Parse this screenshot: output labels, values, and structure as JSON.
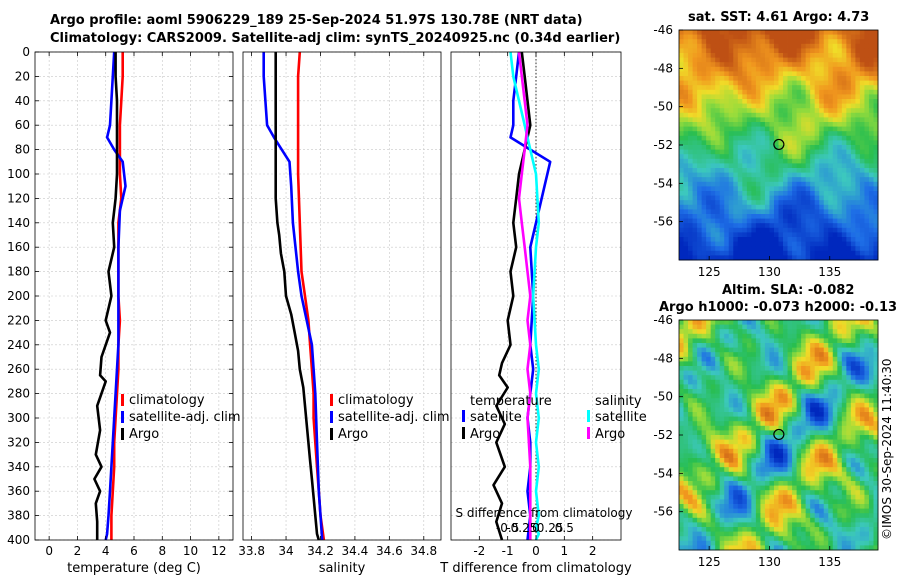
{
  "titles": {
    "line1": "Argo profile: aoml 5906229_189 25-Sep-2024 51.97S 130.78E (NRT data)",
    "line2": "Climatology: CARS2009. Satellite-adj clim: synTS_20240925.nc (0.34d earlier)",
    "sst": "sat. SST: 4.61 Argo: 4.73",
    "sla1": "Altim. SLA: -0.082",
    "sla2": "Argo h1000: -0.073 h2000: -0.13"
  },
  "credit": "©IMOS 30-Sep-2024 11:40:30",
  "colors": {
    "climatology": "#ff0000",
    "satellite": "#0000ff",
    "argo": "#000000",
    "sat_salinity": "#00ffff",
    "argo_salinity": "#ff00ff"
  },
  "chart_data": [
    {
      "type": "line",
      "title": "",
      "xlabel": "temperature (deg C)",
      "ylabel": "",
      "xlim": [
        -1,
        13
      ],
      "ylim": [
        400,
        0
      ],
      "xticks": [
        0,
        2,
        4,
        6,
        8,
        10,
        12
      ],
      "xtick_labels": [
        "0",
        "2",
        "4",
        "6",
        "8",
        "10",
        "12"
      ],
      "yticks": [
        0,
        20,
        40,
        60,
        80,
        100,
        120,
        140,
        160,
        180,
        200,
        220,
        240,
        260,
        280,
        300,
        320,
        340,
        360,
        380,
        400
      ],
      "ytick_labels": [
        "0",
        "20",
        "40",
        "60",
        "80",
        "100",
        "120",
        "140",
        "160",
        "180",
        "200",
        "220",
        "240",
        "260",
        "280",
        "300",
        "320",
        "340",
        "360",
        "380",
        "400"
      ],
      "grid": true,
      "legend": [
        "climatology",
        "satellite-adj. clim",
        "Argo"
      ],
      "series": [
        {
          "name": "climatology",
          "color": "red",
          "x": [
            5.2,
            5.2,
            5.1,
            5.0,
            5.0,
            5.0,
            5.1,
            4.9,
            4.9,
            4.9,
            5.0,
            4.9,
            4.9,
            4.8,
            4.7,
            4.6,
            4.6,
            4.5,
            4.4,
            4.4
          ],
          "y": [
            0,
            20,
            40,
            60,
            80,
            100,
            120,
            140,
            180,
            200,
            220,
            240,
            260,
            280,
            300,
            320,
            340,
            360,
            380,
            400
          ]
        },
        {
          "name": "satellite-adj. clim",
          "color": "blue",
          "x": [
            4.6,
            4.5,
            4.4,
            4.3,
            4.1,
            4.6,
            5.2,
            5.4,
            5.0,
            4.9,
            4.9,
            4.9,
            4.8,
            4.7,
            4.6,
            4.5,
            4.4,
            4.3,
            4.2,
            4.1,
            4.0
          ],
          "y": [
            0,
            20,
            40,
            60,
            70,
            80,
            90,
            110,
            130,
            160,
            200,
            240,
            260,
            280,
            300,
            320,
            340,
            360,
            380,
            395,
            400
          ]
        },
        {
          "name": "Argo",
          "color": "black",
          "x": [
            4.7,
            4.7,
            4.8,
            4.8,
            4.8,
            4.8,
            4.7,
            4.5,
            4.6,
            4.2,
            4.4,
            4.0,
            4.3,
            3.7,
            3.6,
            4.0,
            3.4,
            3.6,
            3.3,
            3.7,
            3.2,
            3.6,
            3.3,
            3.4,
            3.4
          ],
          "y": [
            0,
            20,
            40,
            60,
            80,
            100,
            120,
            140,
            160,
            180,
            200,
            220,
            230,
            250,
            265,
            270,
            290,
            310,
            330,
            340,
            350,
            360,
            370,
            385,
            400
          ]
        }
      ]
    },
    {
      "type": "line",
      "xlabel": "salinity",
      "xlim": [
        33.75,
        34.9
      ],
      "ylim": [
        400,
        0
      ],
      "xticks": [
        33.8,
        34,
        34.2,
        34.4,
        34.6,
        34.8
      ],
      "xtick_labels": [
        "33.8",
        "34",
        "34.2",
        "34.4",
        "34.6",
        "34.8"
      ],
      "grid": true,
      "legend": [
        "climatology",
        "satellite-adj. clim",
        "Argo"
      ],
      "series": [
        {
          "name": "climatology",
          "color": "red",
          "x": [
            34.08,
            34.07,
            34.07,
            34.07,
            34.08,
            34.09,
            34.11,
            34.13,
            34.14,
            34.15,
            34.16,
            34.16,
            34.17,
            34.18,
            34.19,
            34.2,
            34.21,
            34.22
          ],
          "y": [
            0,
            20,
            60,
            100,
            140,
            180,
            200,
            220,
            240,
            260,
            280,
            300,
            320,
            340,
            360,
            380,
            390,
            400
          ]
        },
        {
          "name": "satellite-adj. clim",
          "color": "blue",
          "x": [
            33.87,
            33.87,
            33.88,
            33.89,
            33.93,
            34.02,
            34.03,
            34.04,
            34.07,
            34.09,
            34.12,
            34.15,
            34.16,
            34.17,
            34.18,
            34.19,
            34.2,
            34.21
          ],
          "y": [
            0,
            20,
            40,
            60,
            70,
            90,
            110,
            140,
            180,
            200,
            220,
            240,
            260,
            280,
            320,
            360,
            380,
            400
          ]
        },
        {
          "name": "Argo",
          "color": "black",
          "x": [
            33.94,
            33.94,
            33.94,
            33.94,
            33.94,
            33.95,
            33.96,
            33.97,
            33.99,
            34.0,
            34.03,
            34.05,
            34.07,
            34.08,
            34.1,
            34.11,
            34.12,
            34.13,
            34.14,
            34.15,
            34.16,
            34.17,
            34.18,
            34.19
          ],
          "y": [
            0,
            20,
            60,
            100,
            120,
            140,
            150,
            165,
            180,
            200,
            215,
            230,
            245,
            260,
            275,
            290,
            305,
            320,
            335,
            350,
            365,
            380,
            395,
            400
          ]
        }
      ]
    },
    {
      "type": "line",
      "xlabel": "T difference from climatology",
      "top_axis_title": "S difference from climatology",
      "xlim": [
        -3,
        3
      ],
      "ylim": [
        400,
        0
      ],
      "xticks": [
        -2,
        -1,
        0,
        1,
        2
      ],
      "xtick_labels": [
        "-2",
        "-1",
        "0",
        "1",
        "2"
      ],
      "top_ticks": [
        -1,
        -0.5,
        0,
        0.5,
        1
      ],
      "top_tick_labels": [
        "-0.5",
        "-0.25",
        "0",
        "0.25",
        "0.5"
      ],
      "grid": true,
      "legend_temperature_title": "temperature",
      "legend_salinity_title": "salinity",
      "legend_temperature": [
        "satellite",
        "Argo"
      ],
      "legend_salinity": [
        "satellite",
        "Argo"
      ],
      "series": [
        {
          "name": "T satellite",
          "color": "blue",
          "x": [
            -0.6,
            -0.7,
            -0.8,
            -0.8,
            -0.9,
            -0.2,
            0.5,
            0.3,
            0.0,
            -0.2,
            -0.1,
            -0.2,
            -0.1,
            -0.2,
            -0.3,
            -0.2,
            -0.2,
            -0.3,
            -0.2,
            -0.3
          ],
          "y": [
            0,
            20,
            40,
            60,
            70,
            80,
            90,
            110,
            140,
            160,
            200,
            240,
            260,
            280,
            300,
            320,
            340,
            360,
            380,
            400
          ]
        },
        {
          "name": "T Argo",
          "color": "black",
          "x": [
            -0.5,
            -0.4,
            -0.3,
            -0.2,
            -0.4,
            -0.6,
            -0.7,
            -0.8,
            -0.7,
            -0.9,
            -0.8,
            -1.0,
            -0.9,
            -1.2,
            -1.3,
            -1.0,
            -1.4,
            -1.1,
            -1.4,
            -1.1,
            -1.5,
            -1.2,
            -1.4,
            -1.2
          ],
          "y": [
            0,
            20,
            40,
            60,
            80,
            100,
            120,
            140,
            160,
            180,
            200,
            220,
            240,
            255,
            265,
            275,
            290,
            305,
            320,
            340,
            355,
            370,
            385,
            400
          ]
        },
        {
          "name": "S satellite",
          "color": "cyan",
          "x": [
            -0.9,
            -0.8,
            -0.6,
            -0.4,
            -0.2,
            0.0,
            0.1,
            0.0,
            -0.1,
            0.0,
            0.1,
            0.0,
            0.1,
            0.0,
            0.1,
            0.0,
            0.1,
            0.0,
            0.1,
            0.0
          ],
          "y": [
            0,
            20,
            40,
            60,
            80,
            100,
            140,
            160,
            200,
            240,
            260,
            280,
            300,
            320,
            340,
            360,
            380,
            390,
            395,
            400
          ]
        },
        {
          "name": "S Argo",
          "color": "magenta",
          "x": [
            -0.6,
            -0.5,
            -0.4,
            -0.3,
            -0.4,
            -0.5,
            -0.6,
            -0.5,
            -0.4,
            -0.3,
            -0.2,
            -0.3,
            -0.2,
            -0.3,
            -0.2,
            -0.3,
            -0.2,
            -0.2,
            -0.2
          ],
          "y": [
            0,
            20,
            40,
            60,
            80,
            100,
            120,
            140,
            160,
            180,
            200,
            220,
            240,
            260,
            280,
            300,
            340,
            380,
            400
          ]
        }
      ]
    },
    {
      "type": "heatmap",
      "title": "sat. SST: 4.61 Argo: 4.73",
      "xlim": [
        122.5,
        139
      ],
      "ylim": [
        -58,
        -46
      ],
      "xticks": [
        125,
        130,
        135
      ],
      "xtick_labels": [
        "125",
        "130",
        "135"
      ],
      "yticks": [
        -46,
        -48,
        -50,
        -52,
        -54,
        -56
      ],
      "ytick_labels": [
        "-46",
        "-48",
        "-50",
        "-52",
        "-54",
        "-56"
      ],
      "marker": {
        "lon": 130.78,
        "lat": -51.97
      }
    },
    {
      "type": "heatmap",
      "title": "Altim. SLA: -0.082 / Argo h1000: -0.073 h2000: -0.13",
      "xlim": [
        122.5,
        139
      ],
      "ylim": [
        -58,
        -46
      ],
      "xticks": [
        125,
        130,
        135
      ],
      "xtick_labels": [
        "125",
        "130",
        "135"
      ],
      "yticks": [
        -46,
        -48,
        -50,
        -52,
        -54,
        -56
      ],
      "ytick_labels": [
        "-46",
        "-48",
        "-50",
        "-52",
        "-54",
        "-56"
      ],
      "marker": {
        "lon": 130.78,
        "lat": -51.97
      }
    }
  ]
}
